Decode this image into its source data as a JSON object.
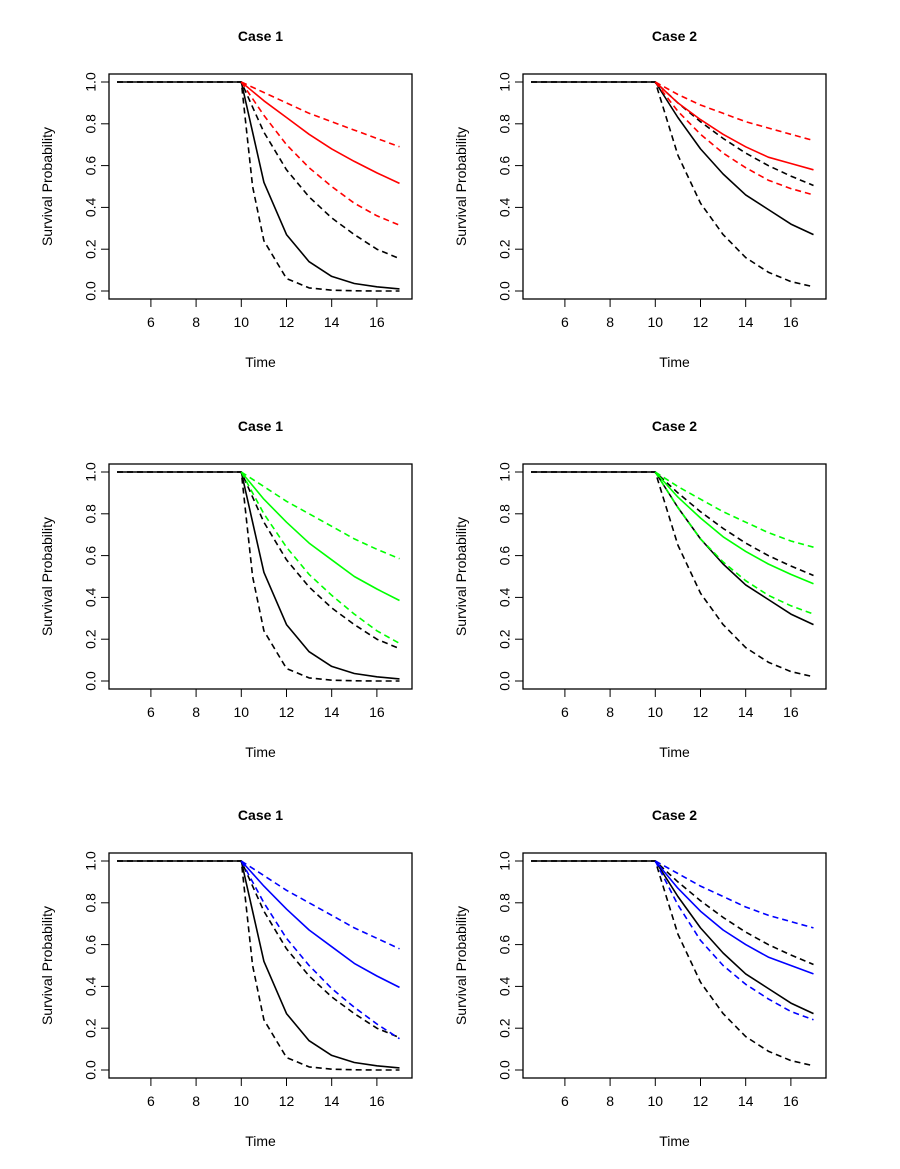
{
  "chart_data": [
    {
      "type": "line",
      "title": "Case 1",
      "xlabel": "Time",
      "ylabel": "Survival Probability",
      "xlim": [
        4.5,
        17.2
      ],
      "ylim": [
        0,
        1
      ],
      "xticks": [
        "6",
        "8",
        "10",
        "12",
        "14",
        "16"
      ],
      "yticks": [
        "0.0",
        "0.2",
        "0.4",
        "0.6",
        "0.8",
        "1.0"
      ],
      "grid": false,
      "accent": "#ff0000",
      "series": [
        {
          "name": "black-upper",
          "color": "#000000",
          "dash": true,
          "x": [
            4.5,
            10,
            11,
            12,
            13,
            14,
            15,
            16,
            17
          ],
          "values": [
            1,
            1,
            0.76,
            0.58,
            0.45,
            0.35,
            0.27,
            0.2,
            0.155
          ]
        },
        {
          "name": "black-estimate",
          "color": "#000000",
          "dash": false,
          "x": [
            4.5,
            10,
            11,
            12,
            13,
            14,
            15,
            16,
            17
          ],
          "values": [
            1,
            1,
            0.52,
            0.27,
            0.14,
            0.07,
            0.036,
            0.02,
            0.01
          ]
        },
        {
          "name": "black-lower",
          "color": "#000000",
          "dash": true,
          "x": [
            4.5,
            10,
            10.5,
            11,
            12,
            13,
            14,
            15,
            16,
            17
          ],
          "values": [
            1,
            1,
            0.5,
            0.24,
            0.06,
            0.015,
            0.004,
            0.001,
            0,
            0
          ]
        },
        {
          "name": "colored-upper",
          "color": "#ff0000",
          "dash": true,
          "x": [
            10,
            11,
            12,
            13,
            14,
            15,
            16,
            17
          ],
          "values": [
            1,
            0.95,
            0.9,
            0.85,
            0.81,
            0.77,
            0.73,
            0.69
          ]
        },
        {
          "name": "colored-estimate",
          "color": "#ff0000",
          "dash": false,
          "x": [
            10,
            11,
            12,
            13,
            14,
            15,
            16,
            17
          ],
          "values": [
            1,
            0.91,
            0.83,
            0.75,
            0.68,
            0.62,
            0.565,
            0.515
          ]
        },
        {
          "name": "colored-lower",
          "color": "#ff0000",
          "dash": true,
          "x": [
            10,
            11,
            12,
            13,
            14,
            15,
            16,
            17
          ],
          "values": [
            1,
            0.84,
            0.7,
            0.59,
            0.5,
            0.42,
            0.36,
            0.315
          ]
        }
      ]
    },
    {
      "type": "line",
      "title": "Case 2",
      "xlabel": "Time",
      "ylabel": "Survival Probability",
      "xlim": [
        4.5,
        17.2
      ],
      "ylim": [
        0,
        1
      ],
      "xticks": [
        "6",
        "8",
        "10",
        "12",
        "14",
        "16"
      ],
      "yticks": [
        "0.0",
        "0.2",
        "0.4",
        "0.6",
        "0.8",
        "1.0"
      ],
      "grid": false,
      "accent": "#ff0000",
      "series": [
        {
          "name": "black-upper",
          "color": "#000000",
          "dash": true,
          "x": [
            4.5,
            10,
            11,
            12,
            13,
            14,
            15,
            16,
            17
          ],
          "values": [
            1,
            1,
            0.9,
            0.81,
            0.73,
            0.66,
            0.6,
            0.55,
            0.505
          ]
        },
        {
          "name": "black-estimate",
          "color": "#000000",
          "dash": false,
          "x": [
            4.5,
            10,
            11,
            12,
            13,
            14,
            15,
            16,
            17
          ],
          "values": [
            1,
            1,
            0.83,
            0.68,
            0.56,
            0.46,
            0.39,
            0.32,
            0.27
          ]
        },
        {
          "name": "black-lower",
          "color": "#000000",
          "dash": true,
          "x": [
            4.5,
            10,
            11,
            12,
            13,
            14,
            15,
            16,
            17
          ],
          "values": [
            1,
            1,
            0.65,
            0.42,
            0.27,
            0.16,
            0.09,
            0.045,
            0.02
          ]
        },
        {
          "name": "colored-upper",
          "color": "#ff0000",
          "dash": true,
          "x": [
            10,
            11,
            12,
            13,
            14,
            15,
            16,
            17
          ],
          "values": [
            1,
            0.94,
            0.89,
            0.85,
            0.81,
            0.78,
            0.75,
            0.72
          ]
        },
        {
          "name": "colored-estimate",
          "color": "#ff0000",
          "dash": false,
          "x": [
            10,
            11,
            12,
            13,
            14,
            15,
            16,
            17
          ],
          "values": [
            1,
            0.9,
            0.82,
            0.75,
            0.69,
            0.64,
            0.61,
            0.58
          ]
        },
        {
          "name": "colored-lower",
          "color": "#ff0000",
          "dash": true,
          "x": [
            10,
            11,
            12,
            13,
            14,
            15,
            16,
            17
          ],
          "values": [
            1,
            0.86,
            0.75,
            0.66,
            0.59,
            0.53,
            0.49,
            0.46
          ]
        }
      ]
    },
    {
      "type": "line",
      "title": "Case 1",
      "xlabel": "Time",
      "ylabel": "Survival Probability",
      "xlim": [
        4.5,
        17.2
      ],
      "ylim": [
        0,
        1
      ],
      "xticks": [
        "6",
        "8",
        "10",
        "12",
        "14",
        "16"
      ],
      "yticks": [
        "0.0",
        "0.2",
        "0.4",
        "0.6",
        "0.8",
        "1.0"
      ],
      "grid": false,
      "accent": "#00ff00",
      "series": [
        {
          "name": "black-upper",
          "color": "#000000",
          "dash": true,
          "x": [
            4.5,
            10,
            11,
            12,
            13,
            14,
            15,
            16,
            17
          ],
          "values": [
            1,
            1,
            0.76,
            0.58,
            0.45,
            0.35,
            0.27,
            0.2,
            0.155
          ]
        },
        {
          "name": "black-estimate",
          "color": "#000000",
          "dash": false,
          "x": [
            4.5,
            10,
            11,
            12,
            13,
            14,
            15,
            16,
            17
          ],
          "values": [
            1,
            1,
            0.52,
            0.27,
            0.14,
            0.07,
            0.036,
            0.02,
            0.01
          ]
        },
        {
          "name": "black-lower",
          "color": "#000000",
          "dash": true,
          "x": [
            4.5,
            10,
            10.5,
            11,
            12,
            13,
            14,
            15,
            16,
            17
          ],
          "values": [
            1,
            1,
            0.5,
            0.24,
            0.06,
            0.015,
            0.004,
            0.001,
            0,
            0
          ]
        },
        {
          "name": "colored-upper",
          "color": "#00ff00",
          "dash": true,
          "x": [
            10,
            11,
            12,
            13,
            14,
            15,
            16,
            17
          ],
          "values": [
            1,
            0.93,
            0.86,
            0.8,
            0.74,
            0.68,
            0.63,
            0.585
          ]
        },
        {
          "name": "colored-estimate",
          "color": "#00ff00",
          "dash": false,
          "x": [
            10,
            11,
            12,
            13,
            14,
            15,
            16,
            17
          ],
          "values": [
            1,
            0.87,
            0.76,
            0.66,
            0.58,
            0.5,
            0.44,
            0.385
          ]
        },
        {
          "name": "colored-lower",
          "color": "#00ff00",
          "dash": true,
          "x": [
            10,
            11,
            12,
            13,
            14,
            15,
            16,
            17
          ],
          "values": [
            1,
            0.8,
            0.64,
            0.51,
            0.41,
            0.32,
            0.24,
            0.18
          ]
        }
      ]
    },
    {
      "type": "line",
      "title": "Case 2",
      "xlabel": "Time",
      "ylabel": "Survival Probability",
      "xlim": [
        4.5,
        17.2
      ],
      "ylim": [
        0,
        1
      ],
      "xticks": [
        "6",
        "8",
        "10",
        "12",
        "14",
        "16"
      ],
      "yticks": [
        "0.0",
        "0.2",
        "0.4",
        "0.6",
        "0.8",
        "1.0"
      ],
      "grid": false,
      "accent": "#00ff00",
      "series": [
        {
          "name": "black-upper",
          "color": "#000000",
          "dash": true,
          "x": [
            4.5,
            10,
            11,
            12,
            13,
            14,
            15,
            16,
            17
          ],
          "values": [
            1,
            1,
            0.9,
            0.81,
            0.73,
            0.66,
            0.6,
            0.55,
            0.505
          ]
        },
        {
          "name": "black-estimate",
          "color": "#000000",
          "dash": false,
          "x": [
            4.5,
            10,
            11,
            12,
            13,
            14,
            15,
            16,
            17
          ],
          "values": [
            1,
            1,
            0.83,
            0.68,
            0.56,
            0.46,
            0.39,
            0.32,
            0.27
          ]
        },
        {
          "name": "black-lower",
          "color": "#000000",
          "dash": true,
          "x": [
            4.5,
            10,
            11,
            12,
            13,
            14,
            15,
            16,
            17
          ],
          "values": [
            1,
            1,
            0.65,
            0.42,
            0.27,
            0.16,
            0.09,
            0.045,
            0.02
          ]
        },
        {
          "name": "colored-upper",
          "color": "#00ff00",
          "dash": true,
          "x": [
            10,
            11,
            12,
            13,
            14,
            15,
            16,
            17
          ],
          "values": [
            1,
            0.93,
            0.87,
            0.81,
            0.76,
            0.71,
            0.67,
            0.64
          ]
        },
        {
          "name": "colored-estimate",
          "color": "#00ff00",
          "dash": false,
          "x": [
            10,
            11,
            12,
            13,
            14,
            15,
            16,
            17
          ],
          "values": [
            1,
            0.88,
            0.78,
            0.69,
            0.62,
            0.56,
            0.51,
            0.465
          ]
        },
        {
          "name": "colored-lower",
          "color": "#00ff00",
          "dash": true,
          "x": [
            10,
            11,
            12,
            13,
            14,
            15,
            16,
            17
          ],
          "values": [
            1,
            0.83,
            0.68,
            0.57,
            0.48,
            0.41,
            0.36,
            0.32
          ]
        }
      ]
    },
    {
      "type": "line",
      "title": "Case 1",
      "xlabel": "Time",
      "ylabel": "Survival Probability",
      "xlim": [
        4.5,
        17.2
      ],
      "ylim": [
        0,
        1
      ],
      "xticks": [
        "6",
        "8",
        "10",
        "12",
        "14",
        "16"
      ],
      "yticks": [
        "0.0",
        "0.2",
        "0.4",
        "0.6",
        "0.8",
        "1.0"
      ],
      "grid": false,
      "accent": "#0000ff",
      "series": [
        {
          "name": "black-upper",
          "color": "#000000",
          "dash": true,
          "x": [
            4.5,
            10,
            11,
            12,
            13,
            14,
            15,
            16,
            17
          ],
          "values": [
            1,
            1,
            0.76,
            0.58,
            0.45,
            0.35,
            0.27,
            0.2,
            0.155
          ]
        },
        {
          "name": "black-estimate",
          "color": "#000000",
          "dash": false,
          "x": [
            4.5,
            10,
            11,
            12,
            13,
            14,
            15,
            16,
            17
          ],
          "values": [
            1,
            1,
            0.52,
            0.27,
            0.14,
            0.07,
            0.036,
            0.02,
            0.01
          ]
        },
        {
          "name": "black-lower",
          "color": "#000000",
          "dash": true,
          "x": [
            4.5,
            10,
            10.5,
            11,
            12,
            13,
            14,
            15,
            16,
            17
          ],
          "values": [
            1,
            1,
            0.5,
            0.24,
            0.06,
            0.015,
            0.004,
            0.001,
            0,
            0
          ]
        },
        {
          "name": "colored-upper",
          "color": "#0000ff",
          "dash": true,
          "x": [
            10,
            11,
            12,
            13,
            14,
            15,
            16,
            17
          ],
          "values": [
            1,
            0.93,
            0.86,
            0.8,
            0.74,
            0.68,
            0.63,
            0.58
          ]
        },
        {
          "name": "colored-estimate",
          "color": "#0000ff",
          "dash": false,
          "x": [
            10,
            11,
            12,
            13,
            14,
            15,
            16,
            17
          ],
          "values": [
            1,
            0.88,
            0.77,
            0.67,
            0.59,
            0.51,
            0.45,
            0.395
          ]
        },
        {
          "name": "colored-lower",
          "color": "#0000ff",
          "dash": true,
          "x": [
            10,
            11,
            12,
            13,
            14,
            15,
            16,
            17
          ],
          "values": [
            1,
            0.8,
            0.63,
            0.5,
            0.39,
            0.3,
            0.22,
            0.15
          ]
        }
      ]
    },
    {
      "type": "line",
      "title": "Case 2",
      "xlabel": "Time",
      "ylabel": "Survival Probability",
      "xlim": [
        4.5,
        17.2
      ],
      "ylim": [
        0,
        1
      ],
      "xticks": [
        "6",
        "8",
        "10",
        "12",
        "14",
        "16"
      ],
      "yticks": [
        "0.0",
        "0.2",
        "0.4",
        "0.6",
        "0.8",
        "1.0"
      ],
      "grid": false,
      "accent": "#0000ff",
      "series": [
        {
          "name": "black-upper",
          "color": "#000000",
          "dash": true,
          "x": [
            4.5,
            10,
            11,
            12,
            13,
            14,
            15,
            16,
            17
          ],
          "values": [
            1,
            1,
            0.9,
            0.81,
            0.73,
            0.66,
            0.6,
            0.55,
            0.505
          ]
        },
        {
          "name": "black-estimate",
          "color": "#000000",
          "dash": false,
          "x": [
            4.5,
            10,
            11,
            12,
            13,
            14,
            15,
            16,
            17
          ],
          "values": [
            1,
            1,
            0.83,
            0.68,
            0.56,
            0.46,
            0.39,
            0.32,
            0.27
          ]
        },
        {
          "name": "black-lower",
          "color": "#000000",
          "dash": true,
          "x": [
            4.5,
            10,
            11,
            12,
            13,
            14,
            15,
            16,
            17
          ],
          "values": [
            1,
            1,
            0.65,
            0.42,
            0.27,
            0.16,
            0.09,
            0.045,
            0.02
          ]
        },
        {
          "name": "colored-upper",
          "color": "#0000ff",
          "dash": true,
          "x": [
            10,
            11,
            12,
            13,
            14,
            15,
            16,
            17
          ],
          "values": [
            1,
            0.94,
            0.88,
            0.83,
            0.78,
            0.74,
            0.71,
            0.68
          ]
        },
        {
          "name": "colored-estimate",
          "color": "#0000ff",
          "dash": false,
          "x": [
            10,
            11,
            12,
            13,
            14,
            15,
            16,
            17
          ],
          "values": [
            1,
            0.87,
            0.76,
            0.67,
            0.6,
            0.54,
            0.5,
            0.46
          ]
        },
        {
          "name": "colored-lower",
          "color": "#0000ff",
          "dash": true,
          "x": [
            10,
            11,
            12,
            13,
            14,
            15,
            16,
            17
          ],
          "values": [
            1,
            0.79,
            0.62,
            0.5,
            0.41,
            0.34,
            0.28,
            0.24
          ]
        }
      ]
    }
  ]
}
